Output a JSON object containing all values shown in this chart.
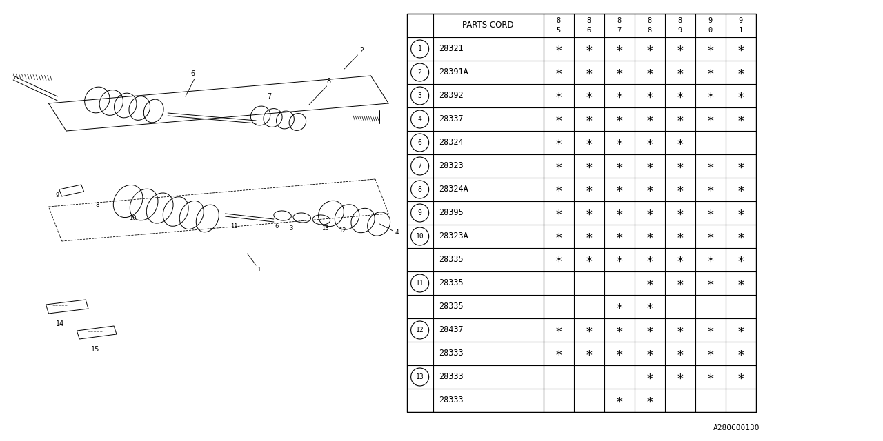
{
  "watermark": "A280C00130",
  "bg_color": "#ffffff",
  "table": {
    "header_col": "PARTS CORD",
    "year_cols": [
      [
        "8",
        "5"
      ],
      [
        "8",
        "6"
      ],
      [
        "8",
        "7"
      ],
      [
        "8",
        "8"
      ],
      [
        "8",
        "9"
      ],
      [
        "9",
        "0"
      ],
      [
        "9",
        "1"
      ]
    ],
    "rows": [
      {
        "num": "1",
        "code": "28321",
        "marks": [
          1,
          1,
          1,
          1,
          1,
          1,
          1
        ]
      },
      {
        "num": "2",
        "code": "28391A",
        "marks": [
          1,
          1,
          1,
          1,
          1,
          1,
          1
        ]
      },
      {
        "num": "3",
        "code": "28392",
        "marks": [
          1,
          1,
          1,
          1,
          1,
          1,
          1
        ]
      },
      {
        "num": "4",
        "code": "28337",
        "marks": [
          1,
          1,
          1,
          1,
          1,
          1,
          1
        ]
      },
      {
        "num": "6",
        "code": "28324",
        "marks": [
          1,
          1,
          1,
          1,
          1,
          0,
          0
        ]
      },
      {
        "num": "7",
        "code": "28323",
        "marks": [
          1,
          1,
          1,
          1,
          1,
          1,
          1
        ]
      },
      {
        "num": "8",
        "code": "28324A",
        "marks": [
          1,
          1,
          1,
          1,
          1,
          1,
          1
        ]
      },
      {
        "num": "9",
        "code": "28395",
        "marks": [
          1,
          1,
          1,
          1,
          1,
          1,
          1
        ]
      },
      {
        "num": "10",
        "code": "28323A",
        "marks": [
          1,
          1,
          1,
          1,
          1,
          1,
          1
        ]
      },
      {
        "num": "",
        "code": "28335",
        "marks": [
          1,
          1,
          1,
          1,
          1,
          1,
          1
        ]
      },
      {
        "num": "11",
        "code": "28335",
        "marks": [
          0,
          0,
          0,
          1,
          1,
          1,
          1
        ]
      },
      {
        "num": "",
        "code": "28335",
        "marks": [
          0,
          0,
          1,
          1,
          0,
          0,
          0
        ]
      },
      {
        "num": "12",
        "code": "28437",
        "marks": [
          1,
          1,
          1,
          1,
          1,
          1,
          1
        ]
      },
      {
        "num": "",
        "code": "28333",
        "marks": [
          1,
          1,
          1,
          1,
          1,
          1,
          1
        ]
      },
      {
        "num": "13",
        "code": "28333",
        "marks": [
          0,
          0,
          0,
          1,
          1,
          1,
          1
        ]
      },
      {
        "num": "",
        "code": "28333",
        "marks": [
          0,
          0,
          1,
          1,
          0,
          0,
          0
        ]
      }
    ]
  },
  "lc": "#000000",
  "draw_lw": 0.7
}
